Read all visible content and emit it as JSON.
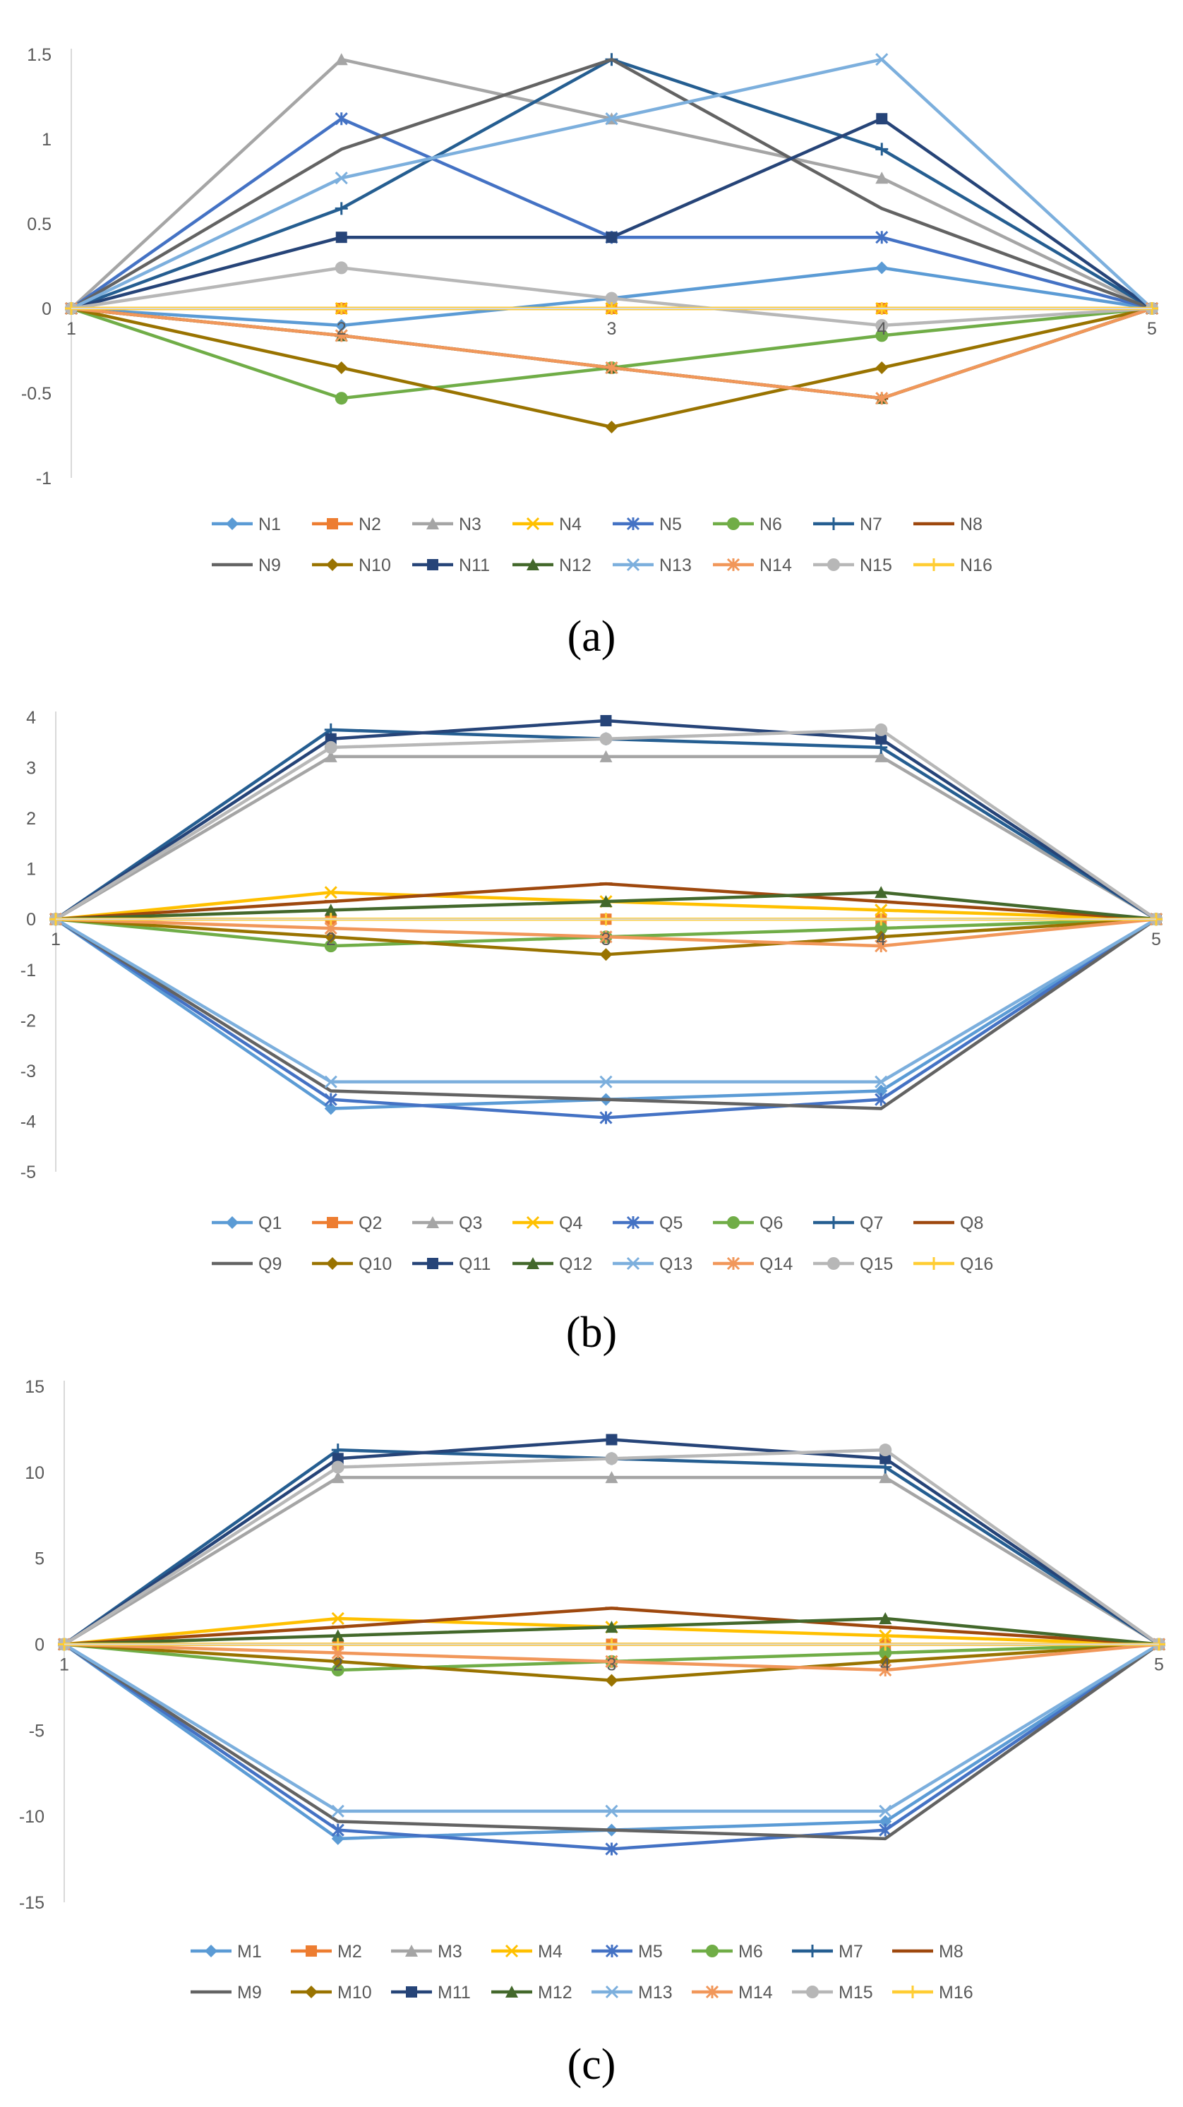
{
  "figure_labels": [
    "(a)",
    "(b)",
    "(c)"
  ],
  "series_styles": [
    {
      "color": "#5B9BD5",
      "marker": "diamond"
    },
    {
      "color": "#ED7D31",
      "marker": "square"
    },
    {
      "color": "#A5A5A5",
      "marker": "triangle"
    },
    {
      "color": "#FFC000",
      "marker": "x"
    },
    {
      "color": "#4472C4",
      "marker": "star"
    },
    {
      "color": "#70AD47",
      "marker": "circle"
    },
    {
      "color": "#255E91",
      "marker": "plus"
    },
    {
      "color": "#9E480E",
      "marker": "dash"
    },
    {
      "color": "#636363",
      "marker": "none"
    },
    {
      "color": "#997300",
      "marker": "diamond"
    },
    {
      "color": "#264478",
      "marker": "square"
    },
    {
      "color": "#43682B",
      "marker": "triangle"
    },
    {
      "color": "#7CAFDD",
      "marker": "x"
    },
    {
      "color": "#F1975A",
      "marker": "star"
    },
    {
      "color": "#B7B7B7",
      "marker": "circle"
    },
    {
      "color": "#FFCD33",
      "marker": "plus"
    }
  ],
  "chart_data": [
    {
      "type": "line",
      "title": "",
      "panel": "(a)",
      "x": [
        1,
        2,
        3,
        4,
        5
      ],
      "x_ticks": [
        "1",
        "2",
        "3",
        "4",
        "5"
      ],
      "ylim": [
        -1,
        1.5
      ],
      "y_ticks": [
        1.5,
        1,
        0.5,
        0,
        -0.5,
        -1
      ],
      "y_tick_labels": [
        "1.5",
        "1",
        "0.5",
        "0",
        "-0.5",
        "-1"
      ],
      "series": [
        {
          "name": "N1",
          "values": [
            0,
            -0.1,
            0.06,
            0.24,
            0
          ]
        },
        {
          "name": "N2",
          "values": [
            0,
            0,
            0,
            0,
            0
          ]
        },
        {
          "name": "N3",
          "values": [
            0,
            1.47,
            1.12,
            0.77,
            0
          ]
        },
        {
          "name": "N4",
          "values": [
            0,
            0,
            0,
            0,
            0
          ]
        },
        {
          "name": "N5",
          "values": [
            0,
            1.12,
            0.42,
            0.42,
            0
          ]
        },
        {
          "name": "N6",
          "values": [
            0,
            -0.53,
            -0.35,
            -0.16,
            0
          ]
        },
        {
          "name": "N7",
          "values": [
            0,
            0.59,
            1.47,
            0.94,
            0
          ]
        },
        {
          "name": "N8",
          "values": [
            0,
            -0.16,
            -0.35,
            -0.53,
            0
          ]
        },
        {
          "name": "N9",
          "values": [
            0,
            0.94,
            1.47,
            0.59,
            0
          ]
        },
        {
          "name": "N10",
          "values": [
            0,
            -0.35,
            -0.7,
            -0.35,
            0
          ]
        },
        {
          "name": "N11",
          "values": [
            0,
            0.42,
            0.42,
            1.12,
            0
          ]
        },
        {
          "name": "N12",
          "values": [
            0,
            -0.16,
            -0.35,
            -0.53,
            0
          ]
        },
        {
          "name": "N13",
          "values": [
            0,
            0.77,
            1.12,
            1.47,
            0
          ]
        },
        {
          "name": "N14",
          "values": [
            0,
            -0.16,
            -0.35,
            -0.53,
            0
          ]
        },
        {
          "name": "N15",
          "values": [
            0,
            0.24,
            0.06,
            -0.1,
            0
          ]
        },
        {
          "name": "N16",
          "values": [
            0,
            0,
            0,
            0,
            0
          ]
        }
      ]
    },
    {
      "type": "line",
      "title": "",
      "panel": "(b)",
      "x": [
        1,
        2,
        3,
        4,
        5
      ],
      "x_ticks": [
        "1",
        "2",
        "3",
        "4",
        "5"
      ],
      "ylim": [
        -5,
        4
      ],
      "y_ticks": [
        4,
        3,
        2,
        1,
        0,
        -1,
        -2,
        -3,
        -4,
        -5
      ],
      "y_tick_labels": [
        "4",
        "3",
        "2",
        "1",
        "0",
        "-1",
        "-2",
        "-3",
        "-4",
        "-5"
      ],
      "series": [
        {
          "name": "Q1",
          "values": [
            0,
            -3.75,
            -3.57,
            -3.4,
            0
          ]
        },
        {
          "name": "Q2",
          "values": [
            0,
            0,
            0,
            0,
            0
          ]
        },
        {
          "name": "Q3",
          "values": [
            0,
            3.22,
            3.22,
            3.22,
            0
          ]
        },
        {
          "name": "Q4",
          "values": [
            0,
            0.53,
            0.35,
            0.18,
            0
          ]
        },
        {
          "name": "Q5",
          "values": [
            0,
            -3.57,
            -3.93,
            -3.57,
            0
          ]
        },
        {
          "name": "Q6",
          "values": [
            0,
            -0.53,
            -0.35,
            -0.18,
            0
          ]
        },
        {
          "name": "Q7",
          "values": [
            0,
            3.75,
            3.57,
            3.4,
            0
          ]
        },
        {
          "name": "Q8",
          "values": [
            0,
            0.35,
            0.7,
            0.35,
            0
          ]
        },
        {
          "name": "Q9",
          "values": [
            0,
            -3.4,
            -3.57,
            -3.75,
            0
          ]
        },
        {
          "name": "Q10",
          "values": [
            0,
            -0.35,
            -0.7,
            -0.35,
            0
          ]
        },
        {
          "name": "Q11",
          "values": [
            0,
            3.57,
            3.93,
            3.57,
            0
          ]
        },
        {
          "name": "Q12",
          "values": [
            0,
            0.18,
            0.35,
            0.53,
            0
          ]
        },
        {
          "name": "Q13",
          "values": [
            0,
            -3.22,
            -3.22,
            -3.22,
            0
          ]
        },
        {
          "name": "Q14",
          "values": [
            0,
            -0.18,
            -0.35,
            -0.53,
            0
          ]
        },
        {
          "name": "Q15",
          "values": [
            0,
            3.4,
            3.57,
            3.75,
            0
          ]
        },
        {
          "name": "Q16",
          "values": [
            0,
            0,
            0,
            0,
            0
          ]
        }
      ]
    },
    {
      "type": "line",
      "title": "",
      "panel": "(c)",
      "x": [
        1,
        2,
        3,
        4,
        5
      ],
      "x_ticks": [
        "1",
        "2",
        "3",
        "4",
        "5"
      ],
      "ylim": [
        -15,
        15
      ],
      "y_ticks": [
        15,
        10,
        5,
        0,
        -5,
        -10,
        -15
      ],
      "y_tick_labels": [
        "15",
        "10",
        "5",
        "0",
        "-5",
        "-10",
        "-15"
      ],
      "series": [
        {
          "name": "M1",
          "values": [
            0,
            -11.3,
            -10.8,
            -10.3,
            0
          ]
        },
        {
          "name": "M2",
          "values": [
            0,
            0,
            0,
            0,
            0
          ]
        },
        {
          "name": "M3",
          "values": [
            0,
            9.7,
            9.7,
            9.7,
            0
          ]
        },
        {
          "name": "M4",
          "values": [
            0,
            1.5,
            1.0,
            0.5,
            0
          ]
        },
        {
          "name": "M5",
          "values": [
            0,
            -10.8,
            -11.9,
            -10.8,
            0
          ]
        },
        {
          "name": "M6",
          "values": [
            0,
            -1.5,
            -1.0,
            -0.5,
            0
          ]
        },
        {
          "name": "M7",
          "values": [
            0,
            11.3,
            10.8,
            10.3,
            0
          ]
        },
        {
          "name": "M8",
          "values": [
            0,
            1.0,
            2.1,
            1.0,
            0
          ]
        },
        {
          "name": "M9",
          "values": [
            0,
            -10.3,
            -10.8,
            -11.3,
            0
          ]
        },
        {
          "name": "M10",
          "values": [
            0,
            -1.0,
            -2.1,
            -1.0,
            0
          ]
        },
        {
          "name": "M11",
          "values": [
            0,
            10.8,
            11.9,
            10.8,
            0
          ]
        },
        {
          "name": "M12",
          "values": [
            0,
            0.5,
            1.0,
            1.5,
            0
          ]
        },
        {
          "name": "M13",
          "values": [
            0,
            -9.7,
            -9.7,
            -9.7,
            0
          ]
        },
        {
          "name": "M14",
          "values": [
            0,
            -0.5,
            -1.0,
            -1.5,
            0
          ]
        },
        {
          "name": "M15",
          "values": [
            0,
            10.3,
            10.8,
            11.3,
            0
          ]
        },
        {
          "name": "M16",
          "values": [
            0,
            0,
            0,
            0,
            0
          ]
        }
      ]
    }
  ]
}
